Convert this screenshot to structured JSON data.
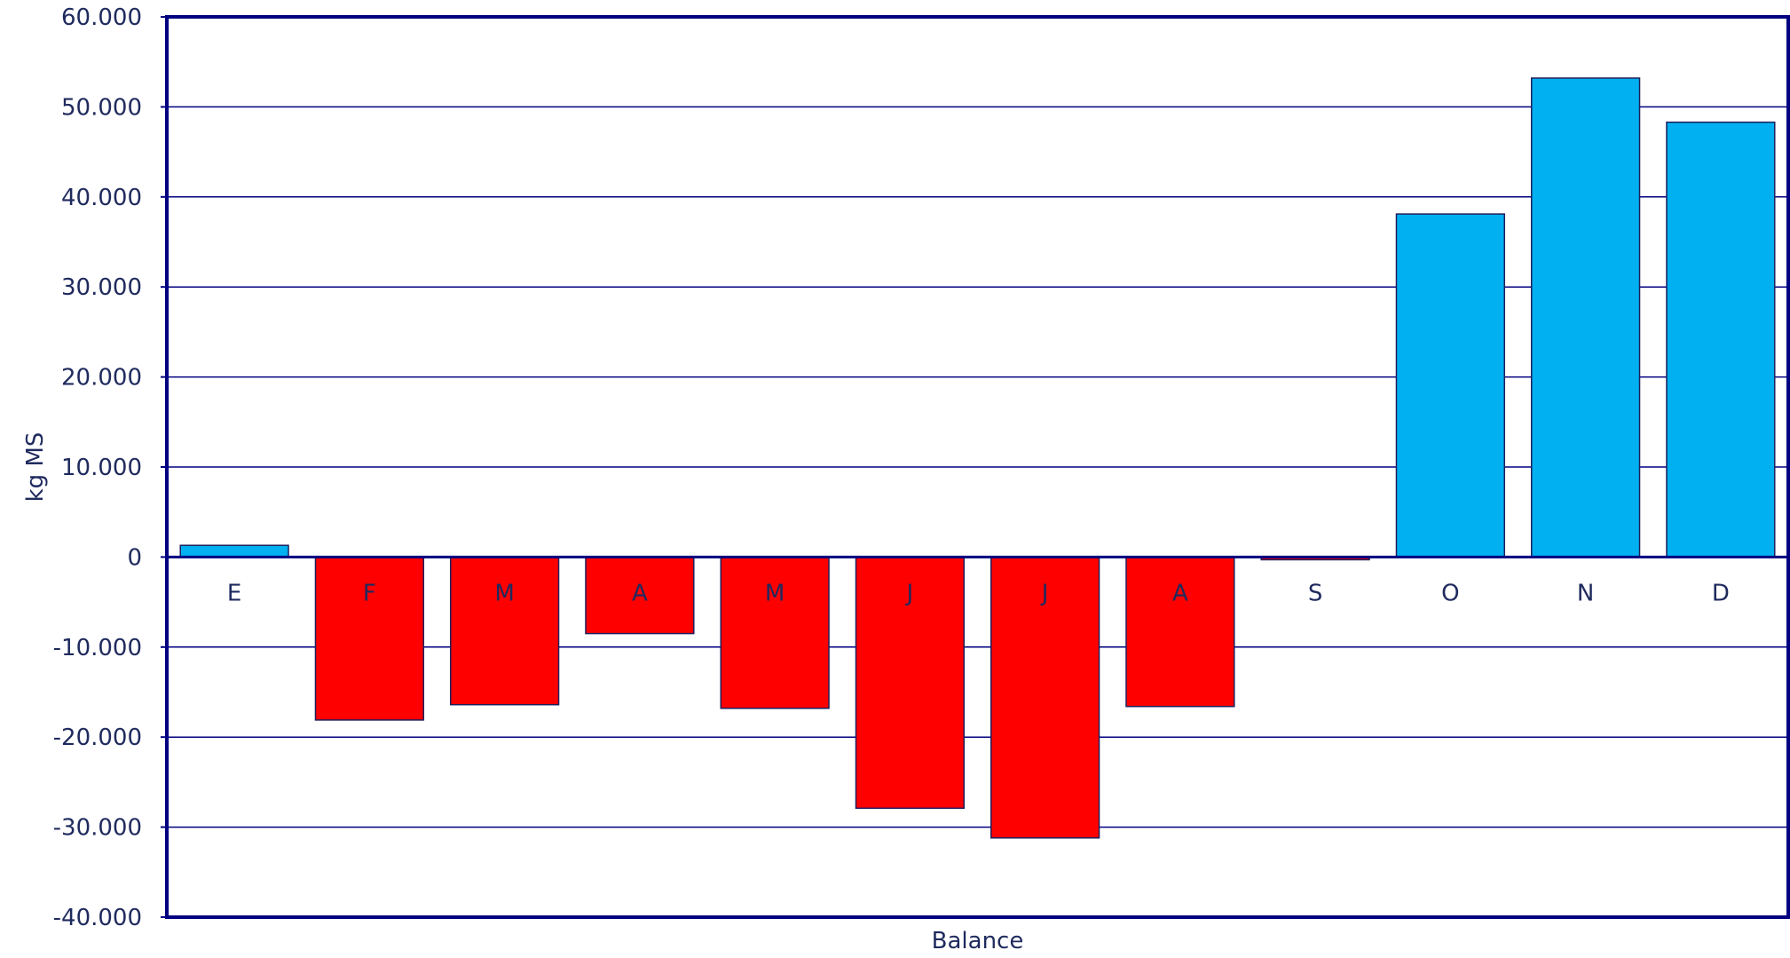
{
  "chart_data": {
    "type": "bar",
    "title": "",
    "xlabel": "Balance",
    "ylabel": "kg MS",
    "categories": [
      "E",
      "F",
      "M",
      "A",
      "M",
      "J",
      "J",
      "A",
      "S",
      "O",
      "N",
      "D"
    ],
    "values": [
      1300,
      -18100,
      -16400,
      -8500,
      -16800,
      -27900,
      -31200,
      -16600,
      -300,
      38100,
      53200,
      48300
    ],
    "ylim": [
      -40000,
      60000
    ],
    "yticks": [
      60000,
      50000,
      40000,
      30000,
      20000,
      10000,
      0,
      -10000,
      -20000,
      -30000,
      -40000
    ],
    "ytick_labels": [
      "60.000",
      "50.000",
      "40.000",
      "30.000",
      "20.000",
      "10.000",
      "0",
      "-10.000",
      "-20.000",
      "-30.000",
      "-40.000"
    ],
    "grid": true,
    "legend": "none",
    "colors": {
      "positive": "#00B0F0",
      "negative": "#FF0000",
      "border": "#000080",
      "bar_outline": "#1F1F5C",
      "text": "#1F2A5E"
    }
  }
}
